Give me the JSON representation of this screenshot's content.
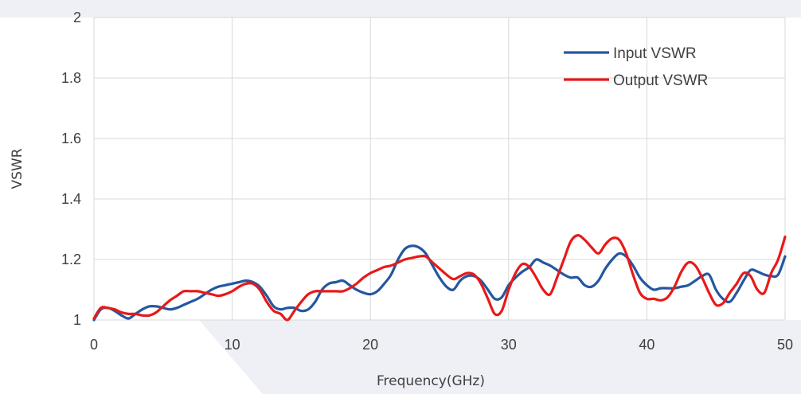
{
  "chart_data": {
    "type": "line",
    "title": "",
    "xlabel": "Frequency(GHz)",
    "ylabel": "VSWR",
    "xlim": [
      0,
      50
    ],
    "ylim": [
      1,
      2
    ],
    "x_ticks": [
      "0",
      "10",
      "20",
      "30",
      "40",
      "50"
    ],
    "y_ticks": [
      "1",
      "1.2",
      "1.4",
      "1.6",
      "1.8",
      "2"
    ],
    "grid": "vertical and horizontal",
    "legend_position": "top-right",
    "series": [
      {
        "name": "Input VSWR",
        "color": "#2457a0",
        "x": [
          0,
          0.5,
          1,
          1.5,
          2,
          2.5,
          3,
          3.5,
          4,
          4.5,
          5,
          5.5,
          6,
          6.5,
          7,
          7.5,
          8,
          8.5,
          9,
          9.5,
          10,
          10.5,
          11,
          11.5,
          12,
          12.5,
          13,
          13.5,
          14,
          14.5,
          15,
          15.5,
          16,
          16.5,
          17,
          17.5,
          18,
          18.5,
          19,
          19.5,
          20,
          20.5,
          21,
          21.5,
          22,
          22.5,
          23,
          23.5,
          24,
          24.5,
          25,
          25.5,
          26,
          26.5,
          27,
          27.5,
          28,
          28.5,
          29,
          29.5,
          30,
          30.5,
          31,
          31.5,
          32,
          32.5,
          33,
          33.5,
          34,
          34.5,
          35,
          35.5,
          36,
          36.5,
          37,
          37.5,
          38,
          38.5,
          39,
          39.5,
          40,
          40.5,
          41,
          41.5,
          42,
          42.5,
          43,
          43.5,
          44,
          44.5,
          45,
          45.5,
          46,
          46.5,
          47,
          47.5,
          48,
          48.5,
          49,
          49.5,
          50
        ],
        "values": [
          1.0,
          1.035,
          1.04,
          1.03,
          1.015,
          1.005,
          1.02,
          1.035,
          1.045,
          1.045,
          1.04,
          1.035,
          1.04,
          1.05,
          1.06,
          1.07,
          1.085,
          1.1,
          1.11,
          1.115,
          1.12,
          1.125,
          1.13,
          1.125,
          1.11,
          1.08,
          1.045,
          1.035,
          1.04,
          1.04,
          1.03,
          1.035,
          1.06,
          1.1,
          1.12,
          1.125,
          1.13,
          1.115,
          1.1,
          1.09,
          1.085,
          1.095,
          1.12,
          1.15,
          1.2,
          1.235,
          1.245,
          1.24,
          1.22,
          1.18,
          1.14,
          1.11,
          1.1,
          1.13,
          1.145,
          1.145,
          1.13,
          1.1,
          1.07,
          1.075,
          1.115,
          1.14,
          1.16,
          1.175,
          1.2,
          1.19,
          1.18,
          1.165,
          1.15,
          1.14,
          1.14,
          1.115,
          1.11,
          1.13,
          1.17,
          1.2,
          1.22,
          1.21,
          1.18,
          1.14,
          1.115,
          1.1,
          1.105,
          1.105,
          1.105,
          1.11,
          1.115,
          1.13,
          1.145,
          1.15,
          1.1,
          1.07,
          1.06,
          1.09,
          1.13,
          1.165,
          1.16,
          1.15,
          1.145,
          1.15,
          1.21
        ]
      },
      {
        "name": "Output VSWR",
        "color": "#e81919",
        "x": [
          0,
          0.5,
          1,
          1.5,
          2,
          2.5,
          3,
          3.5,
          4,
          4.5,
          5,
          5.5,
          6,
          6.5,
          7,
          7.5,
          8,
          8.5,
          9,
          9.5,
          10,
          10.5,
          11,
          11.5,
          12,
          12.5,
          13,
          13.5,
          14,
          14.5,
          15,
          15.5,
          16,
          16.5,
          17,
          17.5,
          18,
          18.5,
          19,
          19.5,
          20,
          20.5,
          21,
          21.5,
          22,
          22.5,
          23,
          23.5,
          24,
          24.5,
          25,
          25.5,
          26,
          26.5,
          27,
          27.5,
          28,
          28.5,
          29,
          29.5,
          30,
          30.5,
          31,
          31.5,
          32,
          32.5,
          33,
          33.5,
          34,
          34.5,
          35,
          35.5,
          36,
          36.5,
          37,
          37.5,
          38,
          38.5,
          39,
          39.5,
          40,
          40.5,
          41,
          41.5,
          42,
          42.5,
          43,
          43.5,
          44,
          44.5,
          45,
          45.5,
          46,
          46.5,
          47,
          47.5,
          48,
          48.5,
          49,
          49.5,
          50
        ],
        "values": [
          1.005,
          1.04,
          1.04,
          1.035,
          1.025,
          1.02,
          1.02,
          1.015,
          1.015,
          1.025,
          1.045,
          1.065,
          1.08,
          1.095,
          1.095,
          1.095,
          1.09,
          1.085,
          1.08,
          1.085,
          1.095,
          1.11,
          1.12,
          1.12,
          1.1,
          1.06,
          1.03,
          1.02,
          1.0,
          1.03,
          1.06,
          1.085,
          1.095,
          1.095,
          1.095,
          1.095,
          1.095,
          1.105,
          1.12,
          1.14,
          1.155,
          1.165,
          1.175,
          1.18,
          1.19,
          1.2,
          1.205,
          1.21,
          1.21,
          1.19,
          1.17,
          1.15,
          1.135,
          1.145,
          1.155,
          1.15,
          1.12,
          1.07,
          1.02,
          1.03,
          1.1,
          1.155,
          1.185,
          1.175,
          1.14,
          1.1,
          1.085,
          1.14,
          1.2,
          1.26,
          1.28,
          1.265,
          1.24,
          1.22,
          1.25,
          1.27,
          1.265,
          1.22,
          1.15,
          1.09,
          1.07,
          1.07,
          1.065,
          1.075,
          1.11,
          1.16,
          1.19,
          1.18,
          1.14,
          1.09,
          1.05,
          1.055,
          1.09,
          1.12,
          1.155,
          1.145,
          1.1,
          1.09,
          1.155,
          1.2,
          1.275
        ]
      }
    ]
  }
}
